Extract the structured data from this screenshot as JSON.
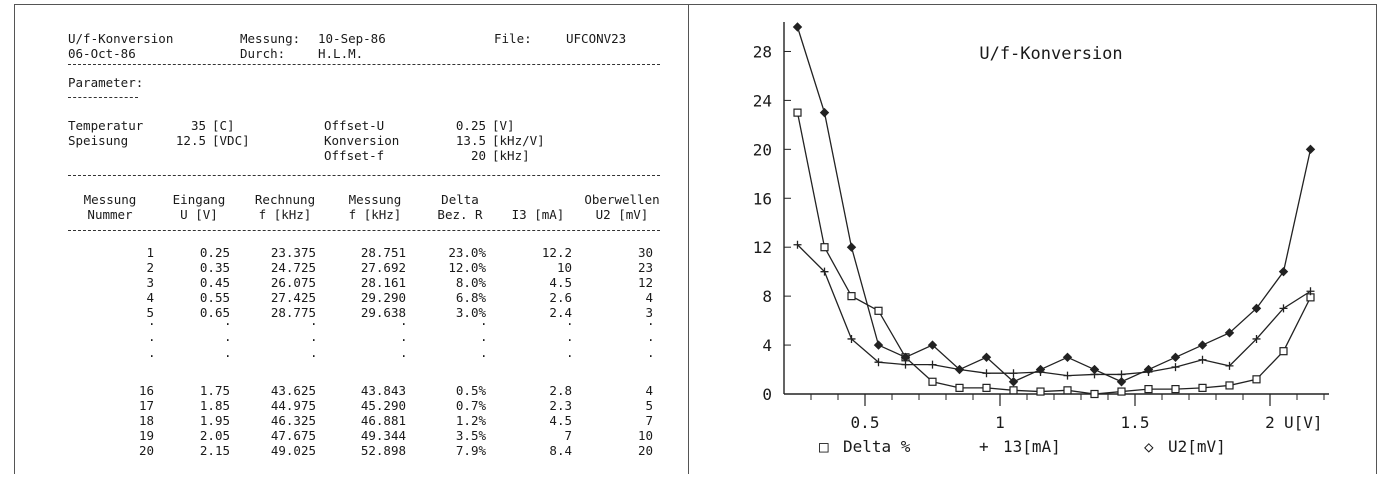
{
  "report": {
    "title": "U/f-Konversion",
    "date": "06-Oct-86",
    "messung_label": "Messung:",
    "messung_date": "10-Sep-86",
    "durch_label": "Durch:",
    "durch_value": "H.L.M.",
    "file_label": "File:",
    "file_value": "UFCONV23",
    "parameter_heading": "Parameter:",
    "params_left": [
      {
        "name": "Temperatur",
        "value": "35",
        "unit": "[C]"
      },
      {
        "name": "Speisung",
        "value": "12.5",
        "unit": "[VDC]"
      }
    ],
    "params_right": [
      {
        "name": "Offset-U",
        "value": "0.25",
        "unit": "[V]"
      },
      {
        "name": "Konversion",
        "value": "13.5",
        "unit": "[kHz/V]"
      },
      {
        "name": "Offset-f",
        "value": "20",
        "unit": "[kHz]"
      }
    ],
    "headers_top": [
      "Messung",
      "Eingang",
      "Rechnung",
      "Messung",
      "Delta",
      "",
      "Oberwellen"
    ],
    "headers_bottom": [
      "Nummer",
      "U [V]",
      "f [kHz]",
      "f [kHz]",
      "Bez. R",
      "I3 [mA]",
      "U2 [mV]"
    ],
    "rows_top": [
      [
        "1",
        "0.25",
        "23.375",
        "28.751",
        "23.0%",
        "12.2",
        "30"
      ],
      [
        "2",
        "0.35",
        "24.725",
        "27.692",
        "12.0%",
        "10",
        "23"
      ],
      [
        "3",
        "0.45",
        "26.075",
        "28.161",
        "8.0%",
        "4.5",
        "12"
      ],
      [
        "4",
        "0.55",
        "27.425",
        "29.290",
        "6.8%",
        "2.6",
        "4"
      ],
      [
        "5",
        "0.65",
        "28.775",
        "29.638",
        "3.0%",
        "2.4",
        "3"
      ]
    ],
    "rows_bottom": [
      [
        "16",
        "1.75",
        "43.625",
        "43.843",
        "0.5%",
        "2.8",
        "4"
      ],
      [
        "17",
        "1.85",
        "44.975",
        "45.290",
        "0.7%",
        "2.3",
        "5"
      ],
      [
        "18",
        "1.95",
        "46.325",
        "46.881",
        "1.2%",
        "4.5",
        "7"
      ],
      [
        "19",
        "2.05",
        "47.675",
        "49.344",
        "3.5%",
        "7",
        "10"
      ],
      [
        "20",
        "2.15",
        "49.025",
        "52.898",
        "7.9%",
        "8.4",
        "20"
      ]
    ]
  },
  "chart_data": {
    "type": "line",
    "title": "U/f-Konversion",
    "xlabel": "U[V]",
    "ylabel": "",
    "xlim": [
      0.2,
      2.2
    ],
    "ylim": [
      0,
      30
    ],
    "xticks": [
      0.5,
      1,
      1.5,
      2
    ],
    "xtick_labels": [
      "0.5",
      "1",
      "1.5",
      "2"
    ],
    "yticks": [
      0,
      4,
      8,
      12,
      16,
      20,
      24,
      28
    ],
    "x": [
      0.25,
      0.35,
      0.45,
      0.55,
      0.65,
      0.75,
      0.85,
      0.95,
      1.05,
      1.15,
      1.25,
      1.35,
      1.45,
      1.55,
      1.65,
      1.75,
      1.85,
      1.95,
      2.05,
      2.15
    ],
    "series": [
      {
        "name": "Delta %",
        "marker": "square",
        "values": [
          23.0,
          12.0,
          8.0,
          6.8,
          3.0,
          1.0,
          0.5,
          0.5,
          0.3,
          0.2,
          0.3,
          0.0,
          0.2,
          0.4,
          0.4,
          0.5,
          0.7,
          1.2,
          3.5,
          7.9
        ]
      },
      {
        "name": "13[mA]",
        "marker": "plus",
        "values": [
          12.2,
          10.0,
          4.5,
          2.6,
          2.4,
          2.4,
          2.0,
          1.7,
          1.7,
          1.8,
          1.5,
          1.6,
          1.6,
          1.8,
          2.2,
          2.8,
          2.3,
          4.5,
          7.0,
          8.4
        ]
      },
      {
        "name": "U2[mV]",
        "marker": "diamond",
        "values": [
          30,
          23,
          12,
          4,
          3,
          4,
          2,
          3,
          1,
          2,
          3,
          2,
          1,
          2,
          3,
          4,
          5,
          7,
          10,
          20
        ]
      }
    ],
    "legend": [
      {
        "symbol": "□",
        "label": "Delta %"
      },
      {
        "symbol": "+",
        "label": "13[mA]"
      },
      {
        "symbol": "◇",
        "label": "U2[mV]"
      }
    ],
    "legend_position": "bottom",
    "grid": false
  }
}
